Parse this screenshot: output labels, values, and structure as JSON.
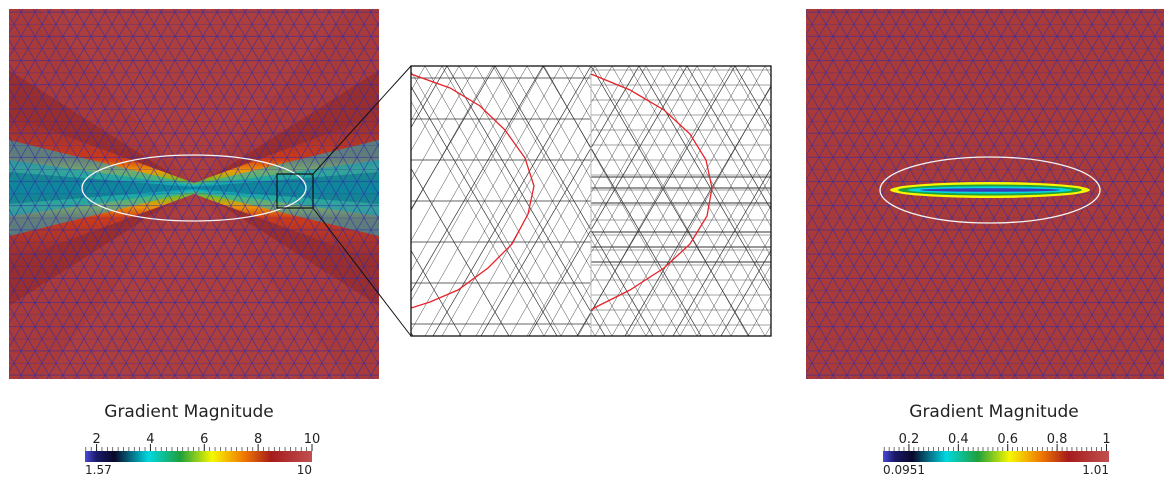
{
  "figure": {
    "left_panel": {
      "colorbar": {
        "title": "Gradient Magnitude",
        "ticks": [
          "2",
          "4",
          "6",
          "8",
          "10"
        ],
        "tick_values": [
          2,
          4,
          6,
          8,
          10
        ],
        "min_label": "1.57",
        "max_label": "10",
        "min": 1.57,
        "max": 10
      }
    },
    "right_panel": {
      "colorbar": {
        "title": "Gradient Magnitude",
        "ticks": [
          "0.2",
          "0.4",
          "0.6",
          "0.8",
          "1"
        ],
        "tick_values": [
          0.2,
          0.4,
          0.6,
          0.8,
          1.0
        ],
        "min_label": "0.0951",
        "max_label": "1.01",
        "min": 0.0951,
        "max": 1.01
      }
    },
    "colors": {
      "background_field": "#a93a3a",
      "mesh_lines": "#2a2aa8",
      "ellipse": "#f4f4f4",
      "interface_curve": "#e8232a",
      "zoom_mesh": "#222222"
    },
    "colormap": [
      "#4b4bd9",
      "#08082a",
      "#00d8e0",
      "#1ea03c",
      "#f7f700",
      "#f07800",
      "#a61c1c",
      "#b84040"
    ]
  }
}
